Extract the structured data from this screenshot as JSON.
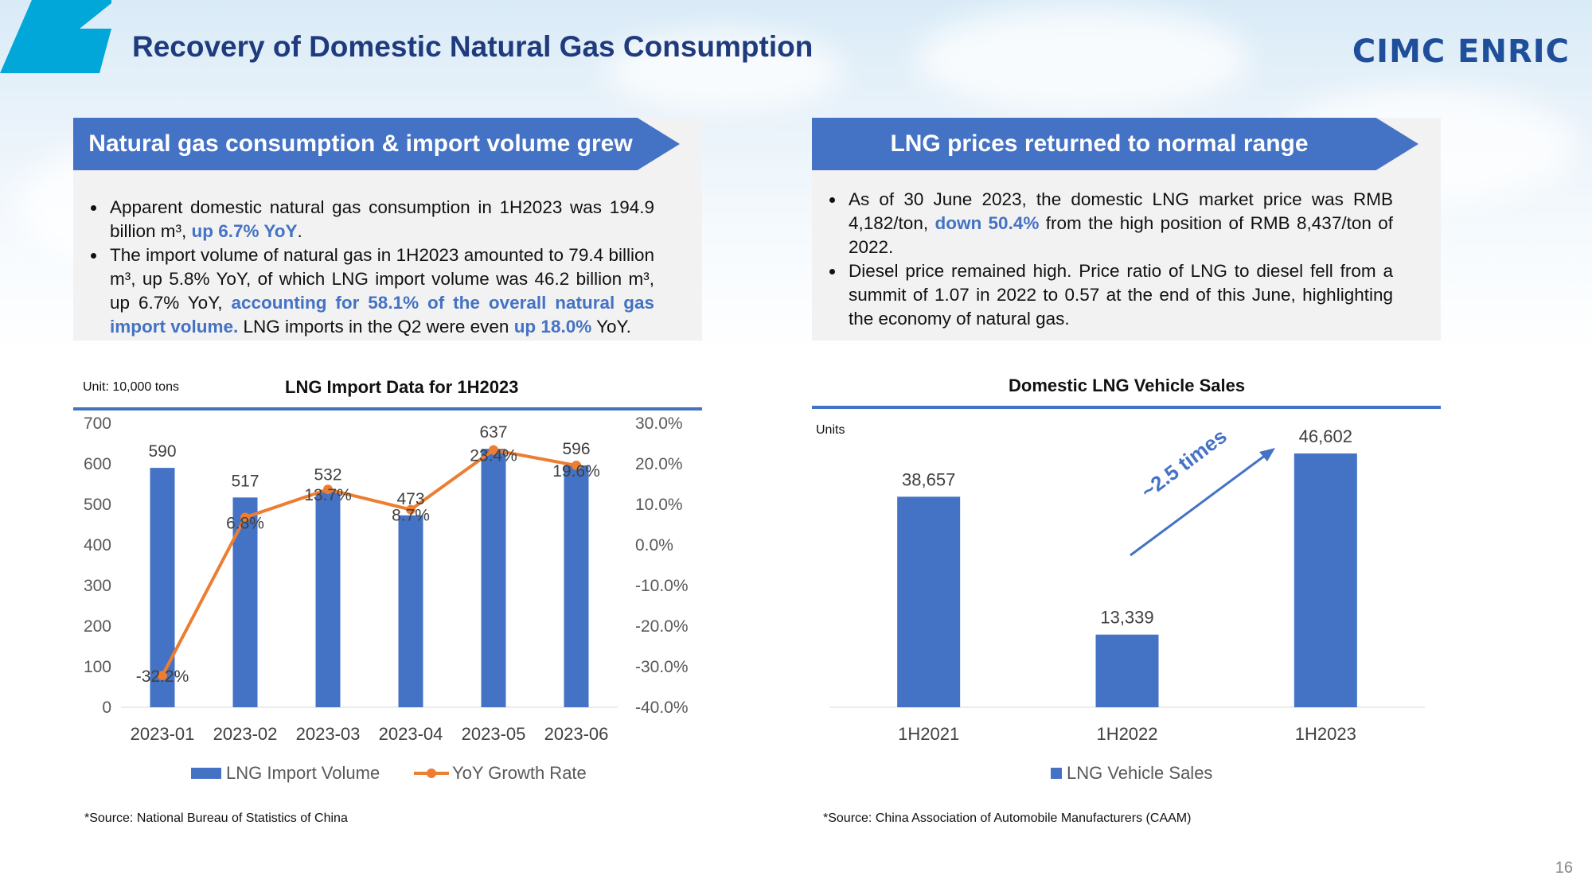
{
  "slide": {
    "title": "Recovery of Domestic Natural Gas Consumption",
    "logo": "CIMC ENRIC",
    "page_number": "16",
    "accent_color": "#4472c4",
    "title_color": "#1f3a7d"
  },
  "left_panel": {
    "banner": "Natural gas consumption & import volume grew",
    "b1_text": "Apparent domestic natural gas consumption in 1H2023 was 194.9 billion m³, ",
    "b1_hl": "up 6.7% YoY",
    "b1_end": ".",
    "b2_text": "The  import volume of natural gas in 1H2023 amounted to 79.4 billion m³, up 5.8% YoY, of which LNG import volume was 46.2 billion m³, up 6.7% YoY, ",
    "b2_hl1": "accounting for 58.1% of the overall natural gas import volume.",
    "b2_mid": " LNG imports in the Q2 were even ",
    "b2_hl2": "up 18.0%",
    "b2_end": " YoY."
  },
  "right_panel": {
    "banner": "LNG prices returned to normal range",
    "b1_text": "As of 30 June 2023, the domestic LNG market price was RMB 4,182/ton, ",
    "b1_hl": "down 50.4%",
    "b1_end": " from the high position of RMB 8,437/ton of 2022.",
    "b2_text": "Diesel price remained high. Price ratio of LNG to diesel fell from a summit of 1.07 in 2022 to 0.57 at the end of this June, highlighting the economy of natural gas."
  },
  "chart_data": [
    {
      "type": "bar",
      "title": "LNG Import Data for 1H2023",
      "unit_note": "Unit: 10,000 tons",
      "categories": [
        "2023-01",
        "2023-02",
        "2023-03",
        "2023-04",
        "2023-05",
        "2023-06"
      ],
      "series": [
        {
          "name": "LNG Import Volume",
          "type": "bar",
          "axis": "left",
          "color": "#4472c4",
          "values": [
            590,
            517,
            532,
            473,
            637,
            596
          ]
        },
        {
          "name": "YoY Growth Rate",
          "type": "line",
          "axis": "right",
          "color": "#ed7d31",
          "values": [
            -32.2,
            6.8,
            13.7,
            8.7,
            23.4,
            19.6
          ],
          "labels": [
            "-32.2%",
            "6.8%",
            "13.7%",
            "8.7%",
            "23.4%",
            "19.6%"
          ]
        }
      ],
      "y_left": {
        "min": 0,
        "max": 700,
        "step": 100,
        "ticks": [
          "0",
          "100",
          "200",
          "300",
          "400",
          "500",
          "600",
          "700"
        ]
      },
      "y_right": {
        "min": -40,
        "max": 30,
        "step": 10,
        "ticks": [
          "-40.0%",
          "-30.0%",
          "-20.0%",
          "-10.0%",
          "0.0%",
          "10.0%",
          "20.0%",
          "30.0%"
        ]
      },
      "source": "*Source: National Bureau of Statistics of China",
      "legend_position": "bottom"
    },
    {
      "type": "bar",
      "title": "Domestic LNG Vehicle Sales",
      "unit_note": "Units",
      "categories": [
        "1H2021",
        "1H2022",
        "1H2023"
      ],
      "series": [
        {
          "name": "LNG Vehicle Sales",
          "color": "#4472c4",
          "values": [
            38657,
            13339,
            46602
          ],
          "labels": [
            "38,657",
            "13,339",
            "46,602"
          ]
        }
      ],
      "y_range": [
        0,
        50000
      ],
      "annotation": "~2.5 times",
      "source": "*Source: China Association of Automobile Manufacturers (CAAM)",
      "legend_position": "bottom"
    }
  ]
}
